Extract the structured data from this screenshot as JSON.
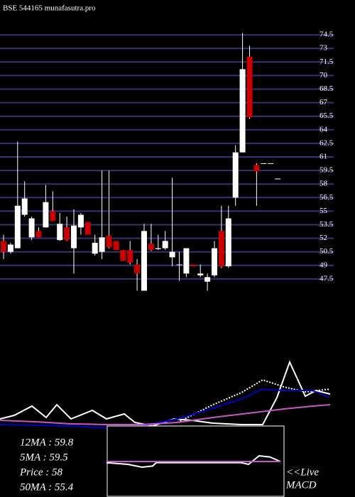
{
  "chart_data": [
    {
      "type": "candlestick",
      "title": "BSE 544165 munafasutra.pro",
      "ylim": [
        46,
        76
      ],
      "yticks": [
        74.5,
        73,
        71.5,
        70,
        68.5,
        67,
        65.5,
        64,
        62.5,
        61,
        59.5,
        58,
        56.5,
        55,
        53.5,
        52,
        50.5,
        49,
        47.5
      ],
      "grid": true,
      "up_color": "#ffffff",
      "down_color": "#cc0000",
      "grid_color": "#33337a",
      "open": [
        51.7,
        50.5,
        50.9,
        54.6,
        52.1,
        52.8,
        53.2,
        55.0,
        51.8,
        53.2,
        50.9,
        53.2,
        53.8,
        50.3,
        50.5,
        52.3,
        51.7,
        50.7,
        50.7,
        49.1,
        46.2,
        51.4,
        50.8,
        50.9,
        49.9,
        49.1,
        48.1,
        49.1,
        47.9,
        47.2,
        47.9,
        52.8,
        48.9,
        56.5,
        61.5,
        72.1,
        60.1,
        60.3,
        60.3,
        58.6
      ],
      "high": [
        52.4,
        51.5,
        62.7,
        58.3,
        54.4,
        53.2,
        57.9,
        57.2,
        54.8,
        54.4,
        55.2,
        54.8,
        53.8,
        52.4,
        59.5,
        59.5,
        51.7,
        50.7,
        51.7,
        49.7,
        53.6,
        53.6,
        52.4,
        52.8,
        58.7,
        50.5,
        50.9,
        49.1,
        49.1,
        48.1,
        51.7,
        55.6,
        55.6,
        62.3,
        74.7,
        73.3,
        60.3,
        60.3,
        60.3,
        58.6
      ],
      "low": [
        49.7,
        50.3,
        50.9,
        54.4,
        51.8,
        52.1,
        53.2,
        53.9,
        51.7,
        51.7,
        48.1,
        52.4,
        52.4,
        50.1,
        49.7,
        50.9,
        50.7,
        49.5,
        49.1,
        46.2,
        46.2,
        50.6,
        50.7,
        50.7,
        48.9,
        47.3,
        47.7,
        48.9,
        47.7,
        46.2,
        47.7,
        48.7,
        48.7,
        55.6,
        61.5,
        65.2,
        55.6,
        60.3,
        60.3,
        58.6
      ],
      "close": [
        50.5,
        51.3,
        55.6,
        56.4,
        54.2,
        52.1,
        56.0,
        53.9,
        53.6,
        51.8,
        53.4,
        54.6,
        52.4,
        51.5,
        52.1,
        51.0,
        50.7,
        49.5,
        49.3,
        48.1,
        52.8,
        50.7,
        50.9,
        51.7,
        50.5,
        49.1,
        50.9,
        48.9,
        48.1,
        47.7,
        50.9,
        48.9,
        54.2,
        61.5,
        70.7,
        65.4,
        59.4,
        60.3,
        60.3,
        58.6
      ]
    },
    {
      "type": "line",
      "xlim": [
        0,
        500
      ],
      "ylim": [
        -10,
        100
      ],
      "series": [
        {
          "name": "12MA : 59.8",
          "color": "#ffffff",
          "x": [
            0,
            20,
            45,
            65,
            80,
            100,
            130,
            150,
            175,
            190,
            215,
            245,
            270,
            300,
            340,
            370,
            390,
            408,
            430,
            445,
            465
          ],
          "values": [
            10,
            15,
            28,
            12,
            30,
            10,
            22,
            10,
            17,
            5,
            0,
            10,
            8,
            4,
            2,
            2,
            40,
            90,
            42,
            50,
            45
          ]
        },
        {
          "name": "5MA : 59.5",
          "color": "#ffffff",
          "dashed": true,
          "x": [
            250,
            300,
            340,
            370,
            400,
            430,
            465
          ],
          "values": [
            5,
            30,
            47,
            65,
            55,
            48,
            52
          ]
        },
        {
          "name": "Price : 58",
          "color": "#0000cc",
          "x": [
            0,
            100,
            150,
            200,
            250,
            300,
            340,
            370,
            400,
            440,
            465
          ],
          "values": [
            2,
            0,
            -3,
            0,
            10,
            25,
            38,
            52,
            50,
            50,
            40
          ]
        },
        {
          "name": "50MA : 55.4",
          "color": "#cc55cc",
          "x": [
            0,
            50,
            100,
            150,
            200,
            250,
            300,
            350,
            400,
            440,
            465
          ],
          "values": [
            8,
            6,
            3,
            2,
            2,
            5,
            12,
            18,
            24,
            28,
            30
          ]
        }
      ]
    },
    {
      "type": "line",
      "title": "<<Live",
      "subtitle": "MACD",
      "xlim": [
        150,
        400
      ],
      "ylim": [
        -50,
        50
      ],
      "series": [
        {
          "color": "#ffffff",
          "x": [
            150,
            180,
            200,
            215,
            220,
            340,
            350,
            365,
            380,
            395
          ],
          "values": [
            -2,
            -5,
            -10,
            -8,
            -2,
            -2,
            -5,
            10,
            8,
            0
          ]
        },
        {
          "color": "#cc55cc",
          "x": [
            150,
            395
          ],
          "values": [
            0,
            0
          ]
        }
      ]
    }
  ]
}
